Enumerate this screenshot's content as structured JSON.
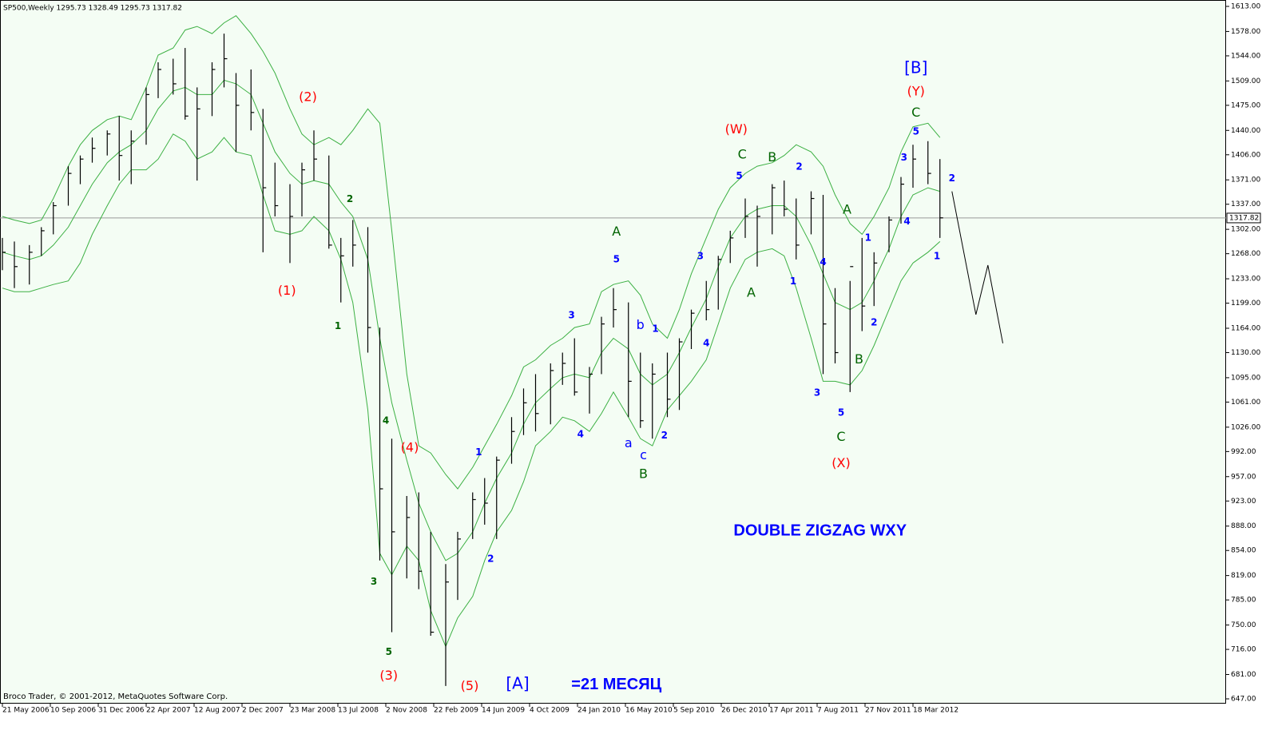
{
  "chart_data": {
    "type": "ohlc",
    "title": "SP500,Weekly  1295.73 1328.49 1295.73 1317.82",
    "footer": "Broco Trader, © 2001-2012, MetaQuotes Software Corp.",
    "bar_color": "#000000",
    "band_color": "#3cb043",
    "background": "#f4fdf4",
    "xlim": [
      0,
      408
    ],
    "ylim": [
      647,
      1613
    ],
    "xticks": [
      {
        "value": 0,
        "label": "21 May 2006"
      },
      {
        "value": 16,
        "label": "10 Sep 2006"
      },
      {
        "value": 32,
        "label": "31 Dec 2006"
      },
      {
        "value": 48,
        "label": "22 Apr 2007"
      },
      {
        "value": 64,
        "label": "12 Aug 2007"
      },
      {
        "value": 80,
        "label": "2 Dec 2007"
      },
      {
        "value": 96,
        "label": "23 Mar 2008"
      },
      {
        "value": 112,
        "label": "13 Jul 2008"
      },
      {
        "value": 128,
        "label": "2 Nov 2008"
      },
      {
        "value": 144,
        "label": "22 Feb 2009"
      },
      {
        "value": 160,
        "label": "14 Jun 2009"
      },
      {
        "value": 176,
        "label": "4 Oct 2009"
      },
      {
        "value": 192,
        "label": "24 Jan 2010"
      },
      {
        "value": 208,
        "label": "16 May 2010"
      },
      {
        "value": 224,
        "label": "5 Sep 2010"
      },
      {
        "value": 240,
        "label": "26 Dec 2010"
      },
      {
        "value": 256,
        "label": "17 Apr 2011"
      },
      {
        "value": 272,
        "label": "7 Aug 2011"
      },
      {
        "value": 288,
        "label": "27 Nov 2011"
      },
      {
        "value": 304,
        "label": "18 Mar 2012"
      }
    ],
    "yticks": [
      {
        "value": 1613,
        "label": "1613.00"
      },
      {
        "value": 1578,
        "label": "1578.00"
      },
      {
        "value": 1544,
        "label": "1544.00"
      },
      {
        "value": 1509,
        "label": "1509.00"
      },
      {
        "value": 1475,
        "label": "1475.00"
      },
      {
        "value": 1440,
        "label": "1440.00"
      },
      {
        "value": 1406,
        "label": "1406.00"
      },
      {
        "value": 1371,
        "label": "1371.00"
      },
      {
        "value": 1337,
        "label": "1337.00"
      },
      {
        "value": 1302,
        "label": "1302.00"
      },
      {
        "value": 1268,
        "label": "1268.00"
      },
      {
        "value": 1233,
        "label": "1233.00"
      },
      {
        "value": 1199,
        "label": "1199.00"
      },
      {
        "value": 1164,
        "label": "1164.00"
      },
      {
        "value": 1130,
        "label": "1130.00"
      },
      {
        "value": 1095,
        "label": "1095.00"
      },
      {
        "value": 1061,
        "label": "1061.00"
      },
      {
        "value": 1026,
        "label": "1026.00"
      },
      {
        "value": 992,
        "label": "992.00"
      },
      {
        "value": 957,
        "label": "957.00"
      },
      {
        "value": 923,
        "label": "923.00"
      },
      {
        "value": 888,
        "label": "888.00"
      },
      {
        "value": 854,
        "label": "854.00"
      },
      {
        "value": 819,
        "label": "819.00"
      },
      {
        "value": 785,
        "label": "785.00"
      },
      {
        "value": 750,
        "label": "750.00"
      },
      {
        "value": 716,
        "label": "716.00"
      },
      {
        "value": 681,
        "label": "681.00"
      },
      {
        "value": 647,
        "label": "647.00"
      }
    ],
    "last_price": 1317.82,
    "x": [
      0,
      4,
      9,
      13,
      17,
      22,
      26,
      30,
      35,
      39,
      43,
      48,
      52,
      57,
      61,
      65,
      70,
      74,
      78,
      83,
      87,
      91,
      96,
      100,
      104,
      109,
      113,
      117,
      122,
      126,
      130,
      135,
      139,
      143,
      148,
      152,
      157,
      161,
      165,
      170,
      174,
      178,
      183,
      187,
      191,
      196,
      200,
      204,
      209,
      213,
      217,
      222,
      226,
      230,
      235,
      239,
      243,
      248,
      252,
      257,
      261,
      265,
      270,
      274,
      278,
      283,
      287,
      291,
      296,
      300,
      304,
      309,
      313
    ],
    "high": [
      1290,
      1285,
      1280,
      1305,
      1340,
      1390,
      1405,
      1430,
      1440,
      1460,
      1440,
      1500,
      1535,
      1540,
      1555,
      1500,
      1535,
      1575,
      1520,
      1525,
      1470,
      1395,
      1365,
      1395,
      1440,
      1405,
      1290,
      1315,
      1305,
      1165,
      1010,
      930,
      935,
      880,
      835,
      880,
      935,
      955,
      985,
      1040,
      1080,
      1100,
      1115,
      1130,
      1150,
      1110,
      1180,
      1220,
      1200,
      1130,
      1115,
      1130,
      1150,
      1190,
      1230,
      1265,
      1300,
      1345,
      1335,
      1365,
      1370,
      1345,
      1355,
      1350,
      1220,
      1230,
      1290,
      1270,
      1320,
      1375,
      1420,
      1425,
      1400
    ],
    "low": [
      1245,
      1220,
      1225,
      1265,
      1295,
      1335,
      1365,
      1395,
      1405,
      1370,
      1365,
      1420,
      1485,
      1490,
      1455,
      1370,
      1460,
      1500,
      1410,
      1440,
      1270,
      1320,
      1255,
      1320,
      1370,
      1275,
      1200,
      1250,
      1130,
      840,
      740,
      815,
      800,
      735,
      665,
      785,
      870,
      890,
      870,
      975,
      1015,
      1020,
      1030,
      1085,
      1070,
      1045,
      1100,
      1165,
      1040,
      1025,
      1010,
      1040,
      1050,
      1135,
      1175,
      1190,
      1255,
      1290,
      1250,
      1295,
      1320,
      1260,
      1295,
      1100,
      1115,
      1075,
      1160,
      1195,
      1270,
      1310,
      1360,
      1365,
      1290
    ],
    "close": [
      1270,
      1250,
      1270,
      1300,
      1335,
      1380,
      1400,
      1415,
      1435,
      1405,
      1425,
      1490,
      1525,
      1505,
      1460,
      1470,
      1525,
      1540,
      1475,
      1465,
      1360,
      1335,
      1320,
      1385,
      1400,
      1280,
      1265,
      1280,
      1165,
      940,
      880,
      900,
      825,
      740,
      810,
      870,
      925,
      920,
      980,
      1020,
      1060,
      1045,
      1105,
      1115,
      1075,
      1100,
      1170,
      1190,
      1090,
      1035,
      1100,
      1065,
      1145,
      1185,
      1190,
      1260,
      1290,
      1320,
      1320,
      1360,
      1330,
      1280,
      1345,
      1170,
      1130,
      1250,
      1195,
      1255,
      1315,
      1365,
      1400,
      1380,
      1318
    ],
    "bands": {
      "upper": [
        1320,
        1315,
        1310,
        1315,
        1345,
        1390,
        1420,
        1440,
        1455,
        1460,
        1455,
        1500,
        1545,
        1555,
        1580,
        1585,
        1575,
        1590,
        1600,
        1575,
        1550,
        1520,
        1470,
        1435,
        1420,
        1430,
        1420,
        1440,
        1470,
        1450,
        1300,
        1100,
        1000,
        990,
        960,
        940,
        970,
        1000,
        1030,
        1070,
        1110,
        1120,
        1140,
        1150,
        1165,
        1170,
        1215,
        1225,
        1230,
        1210,
        1170,
        1150,
        1190,
        1240,
        1290,
        1330,
        1360,
        1380,
        1390,
        1395,
        1405,
        1420,
        1410,
        1390,
        1350,
        1310,
        1295,
        1320,
        1360,
        1410,
        1445,
        1450,
        1430
      ],
      "middle": [
        1270,
        1265,
        1260,
        1265,
        1280,
        1305,
        1335,
        1365,
        1395,
        1410,
        1420,
        1440,
        1470,
        1495,
        1500,
        1490,
        1490,
        1510,
        1505,
        1490,
        1450,
        1410,
        1380,
        1365,
        1370,
        1365,
        1340,
        1320,
        1260,
        1150,
        1060,
        980,
        920,
        880,
        840,
        850,
        880,
        920,
        955,
        990,
        1030,
        1060,
        1080,
        1095,
        1100,
        1095,
        1130,
        1150,
        1135,
        1100,
        1085,
        1100,
        1130,
        1165,
        1205,
        1250,
        1290,
        1320,
        1330,
        1335,
        1335,
        1320,
        1280,
        1240,
        1200,
        1190,
        1200,
        1230,
        1275,
        1320,
        1350,
        1360,
        1355
      ],
      "lower": [
        1220,
        1215,
        1215,
        1220,
        1225,
        1230,
        1255,
        1295,
        1335,
        1365,
        1385,
        1385,
        1400,
        1435,
        1425,
        1400,
        1410,
        1430,
        1410,
        1405,
        1350,
        1300,
        1295,
        1300,
        1320,
        1300,
        1260,
        1200,
        1050,
        850,
        820,
        860,
        840,
        770,
        720,
        760,
        790,
        840,
        880,
        910,
        950,
        1000,
        1020,
        1040,
        1035,
        1020,
        1045,
        1075,
        1040,
        1010,
        1000,
        1050,
        1070,
        1090,
        1120,
        1170,
        1220,
        1260,
        1270,
        1275,
        1265,
        1220,
        1150,
        1090,
        1090,
        1085,
        1105,
        1140,
        1190,
        1230,
        1255,
        1270,
        1285
      ]
    },
    "forecast": {
      "color": "#000000",
      "x": [
        317,
        325,
        329,
        334
      ],
      "values": [
        1355,
        1183,
        1252,
        1143
      ]
    },
    "annotations": [
      {
        "text": "(1)",
        "x": 95,
        "y": 1216,
        "color": "#ff0000",
        "style": "label"
      },
      {
        "text": "(2)",
        "x": 102,
        "y": 1486,
        "color": "#ff0000",
        "style": "label"
      },
      {
        "text": "(3)",
        "x": 129,
        "y": 679,
        "color": "#ff0000",
        "style": "label"
      },
      {
        "text": "(4)",
        "x": 136,
        "y": 997,
        "color": "#ff0000",
        "style": "label"
      },
      {
        "text": "(5)",
        "x": 156,
        "y": 664,
        "color": "#ff0000",
        "style": "label"
      },
      {
        "text": "(W)",
        "x": 245,
        "y": 1441,
        "color": "#ff0000",
        "style": "label"
      },
      {
        "text": "(X)",
        "x": 280,
        "y": 975,
        "color": "#ff0000",
        "style": "label"
      },
      {
        "text": "(Y)",
        "x": 305,
        "y": 1494,
        "color": "#ff0000",
        "style": "label"
      },
      {
        "text": "[A]",
        "x": 172,
        "y": 667,
        "color": "#0000ff",
        "style": "bracket"
      },
      {
        "text": "[B]",
        "x": 305,
        "y": 1526,
        "color": "#0000ff",
        "style": "bracket"
      },
      {
        "text": "1",
        "x": 112,
        "y": 1167,
        "color": "#006400",
        "style": "small-bold"
      },
      {
        "text": "2",
        "x": 116,
        "y": 1344,
        "color": "#006400",
        "style": "small-bold"
      },
      {
        "text": "3",
        "x": 124,
        "y": 810,
        "color": "#006400",
        "style": "small-bold"
      },
      {
        "text": "4",
        "x": 128,
        "y": 1035,
        "color": "#006400",
        "style": "small-bold"
      },
      {
        "text": "5",
        "x": 129,
        "y": 712,
        "color": "#006400",
        "style": "small-bold"
      },
      {
        "text": "A",
        "x": 205,
        "y": 1298,
        "color": "#006400",
        "style": "label"
      },
      {
        "text": "B",
        "x": 214,
        "y": 960,
        "color": "#006400",
        "style": "label"
      },
      {
        "text": "A",
        "x": 250,
        "y": 1213,
        "color": "#006400",
        "style": "label"
      },
      {
        "text": "C",
        "x": 247,
        "y": 1406,
        "color": "#006400",
        "style": "label"
      },
      {
        "text": "B",
        "x": 257,
        "y": 1402,
        "color": "#006400",
        "style": "label"
      },
      {
        "text": "A",
        "x": 282,
        "y": 1329,
        "color": "#006400",
        "style": "label"
      },
      {
        "text": "B",
        "x": 286,
        "y": 1120,
        "color": "#006400",
        "style": "label"
      },
      {
        "text": "C",
        "x": 280,
        "y": 1012,
        "color": "#006400",
        "style": "label"
      },
      {
        "text": "C",
        "x": 305,
        "y": 1464,
        "color": "#006400",
        "style": "label"
      },
      {
        "text": "1",
        "x": 159,
        "y": 991,
        "color": "#0000ff",
        "style": "small-bold"
      },
      {
        "text": "2",
        "x": 163,
        "y": 842,
        "color": "#0000ff",
        "style": "small-bold"
      },
      {
        "text": "3",
        "x": 190,
        "y": 1182,
        "color": "#0000ff",
        "style": "small-bold"
      },
      {
        "text": "4",
        "x": 193,
        "y": 1016,
        "color": "#0000ff",
        "style": "small-bold"
      },
      {
        "text": "5",
        "x": 205,
        "y": 1260,
        "color": "#0000ff",
        "style": "small-bold"
      },
      {
        "text": "b",
        "x": 213,
        "y": 1168,
        "color": "#0000ff",
        "style": "label"
      },
      {
        "text": "1",
        "x": 218,
        "y": 1163,
        "color": "#0000ff",
        "style": "small-bold"
      },
      {
        "text": "a",
        "x": 209,
        "y": 1003,
        "color": "#0000ff",
        "style": "label"
      },
      {
        "text": "c",
        "x": 214,
        "y": 986,
        "color": "#0000ff",
        "style": "label"
      },
      {
        "text": "2",
        "x": 221,
        "y": 1014,
        "color": "#0000ff",
        "style": "small-bold"
      },
      {
        "text": "3",
        "x": 233,
        "y": 1264,
        "color": "#0000ff",
        "style": "small-bold"
      },
      {
        "text": "4",
        "x": 235,
        "y": 1143,
        "color": "#0000ff",
        "style": "small-bold"
      },
      {
        "text": "5",
        "x": 246,
        "y": 1376,
        "color": "#0000ff",
        "style": "small-bold"
      },
      {
        "text": "2",
        "x": 266,
        "y": 1389,
        "color": "#0000ff",
        "style": "small-bold"
      },
      {
        "text": "1",
        "x": 264,
        "y": 1229,
        "color": "#0000ff",
        "style": "small-bold"
      },
      {
        "text": "4",
        "x": 274,
        "y": 1256,
        "color": "#0000ff",
        "style": "small-bold"
      },
      {
        "text": "3",
        "x": 272,
        "y": 1074,
        "color": "#0000ff",
        "style": "small-bold"
      },
      {
        "text": "5",
        "x": 280,
        "y": 1046,
        "color": "#0000ff",
        "style": "small-bold"
      },
      {
        "text": "1",
        "x": 289,
        "y": 1290,
        "color": "#0000ff",
        "style": "small-bold"
      },
      {
        "text": "2",
        "x": 291,
        "y": 1172,
        "color": "#0000ff",
        "style": "small-bold"
      },
      {
        "text": "3",
        "x": 301,
        "y": 1402,
        "color": "#0000ff",
        "style": "small-bold"
      },
      {
        "text": "4",
        "x": 302,
        "y": 1313,
        "color": "#0000ff",
        "style": "small-bold"
      },
      {
        "text": "5",
        "x": 305,
        "y": 1438,
        "color": "#0000ff",
        "style": "small-bold"
      },
      {
        "text": "2",
        "x": 317,
        "y": 1373,
        "color": "#0000ff",
        "style": "small-bold"
      },
      {
        "text": "1",
        "x": 312,
        "y": 1264,
        "color": "#0000ff",
        "style": "small-bold"
      },
      {
        "text": "DOUBLE ZIGZAG WXY",
        "x": 273,
        "y": 881,
        "color": "#0000ff",
        "style": "big"
      },
      {
        "text": "=21 МЕСЯЦ",
        "x": 205,
        "y": 666,
        "color": "#0000ff",
        "style": "big"
      }
    ]
  }
}
